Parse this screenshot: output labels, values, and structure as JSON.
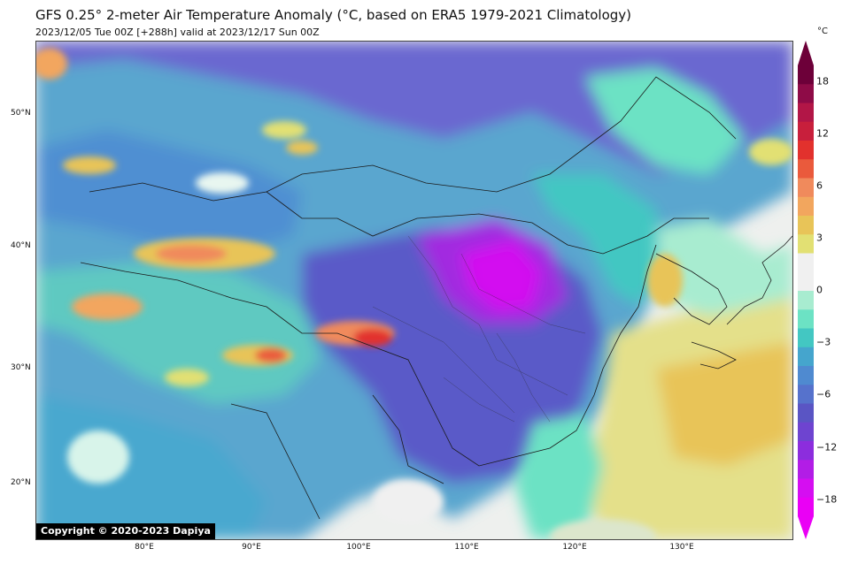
{
  "header": {
    "title": "GFS 0.25° 2-meter Air Temperature Anomaly (°C, based on ERA5 1979-2021 Climatology)",
    "subtitle": "2023/12/05 Tue 00Z [+288h] valid at 2023/12/17 Sun 00Z"
  },
  "map": {
    "lat_labels": [
      "50°N",
      "40°N",
      "30°N",
      "20°N"
    ],
    "lon_labels": [
      "80°E",
      "90°E",
      "100°E",
      "110°E",
      "120°E",
      "130°E"
    ],
    "copyright": "Copyright © 2020-2023 Dapiya"
  },
  "colorbar": {
    "unit": "°C",
    "tick_labels": [
      "18",
      "12",
      "6",
      "3",
      "0",
      "−3",
      "−6",
      "−12",
      "−18"
    ],
    "colors_top_to_bottom": [
      "#6d0039",
      "#8e0b47",
      "#b21647",
      "#c81f3c",
      "#e2312d",
      "#ea5a3c",
      "#f08a5c",
      "#f2a65e",
      "#e8c458",
      "#e2e073",
      "#f0f0f0",
      "#f0f0f0",
      "#a8ecd0",
      "#6ce2c4",
      "#43c7c2",
      "#45a5cd",
      "#4f8ad0",
      "#5672cc",
      "#5a55c4",
      "#6e44d0",
      "#8c2ddd",
      "#b21de6",
      "#d50ef1",
      "#ea00f5"
    ]
  },
  "colors": {
    "neutral": "#f0f0f0",
    "cold_strong": "#b21de6",
    "cold_mid": "#5a55c4",
    "cool": "#43c7c2",
    "warm": "#e8c458",
    "hot": "#e2312d"
  }
}
